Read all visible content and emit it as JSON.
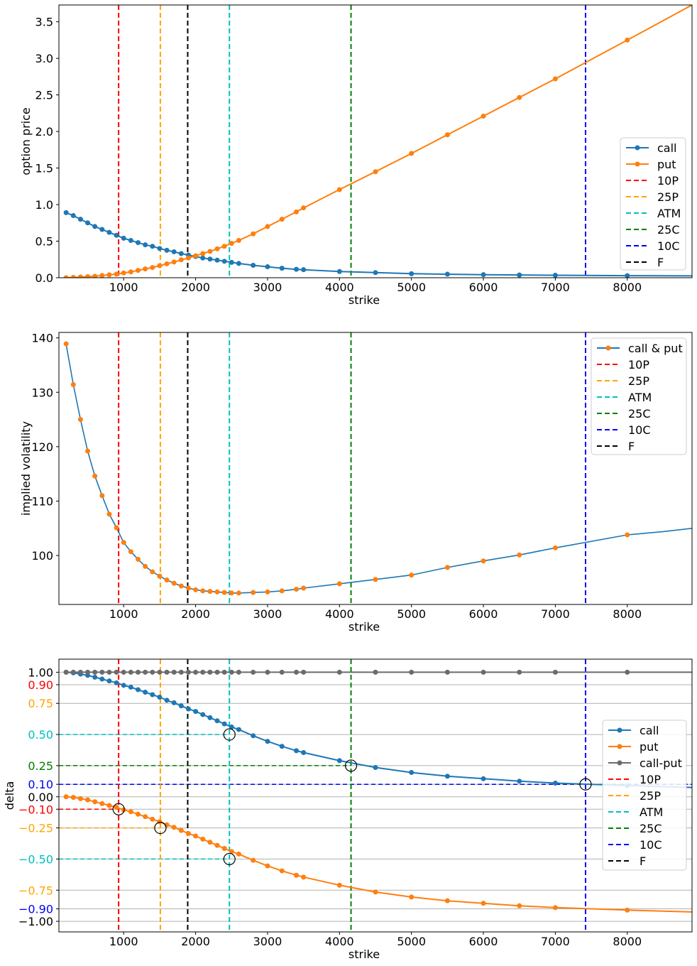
{
  "colors": {
    "call": "#1f77b4",
    "put": "#ff7f0e",
    "callput": "#6b6b6b",
    "10P": "#ff0000",
    "25P": "#ffa500",
    "ATM": "#00bfbf",
    "25C": "#008000",
    "10C": "#0000ff",
    "F": "#000000",
    "grid": "#b0b0b0"
  },
  "chart_data": [
    {
      "type": "line",
      "xlabel": "strike",
      "ylabel": "option price",
      "xlim": [
        100,
        8900
      ],
      "ylim": [
        0,
        3.73
      ],
      "xticks": [
        "1000",
        "2000",
        "3000",
        "4000",
        "5000",
        "6000",
        "7000",
        "8000"
      ],
      "yticks": [
        "0.0",
        "0.5",
        "1.0",
        "1.5",
        "2.0",
        "2.5",
        "3.0",
        "3.5"
      ],
      "legend_position": "lower-right",
      "strikes": [
        200,
        300,
        400,
        500,
        600,
        700,
        800,
        900,
        1000,
        1100,
        1200,
        1300,
        1400,
        1500,
        1600,
        1700,
        1800,
        1900,
        2000,
        2100,
        2200,
        2300,
        2400,
        2500,
        2600,
        2800,
        3000,
        3200,
        3400,
        3500,
        4000,
        4500,
        5000,
        5500,
        6000,
        6500,
        7000,
        8000
      ],
      "series": [
        {
          "name": "call",
          "color_key": "call",
          "values": [
            0.89,
            0.85,
            0.8,
            0.75,
            0.7,
            0.66,
            0.62,
            0.58,
            0.54,
            0.51,
            0.48,
            0.45,
            0.43,
            0.4,
            0.375,
            0.355,
            0.33,
            0.31,
            0.29,
            0.27,
            0.255,
            0.24,
            0.225,
            0.21,
            0.195,
            0.17,
            0.15,
            0.13,
            0.115,
            0.11,
            0.085,
            0.07,
            0.055,
            0.048,
            0.042,
            0.038,
            0.034,
            0.028
          ],
          "tail": [
            [
              8900,
              0.025
            ]
          ]
        },
        {
          "name": "put",
          "color_key": "put",
          "values": [
            0.0,
            0.005,
            0.01,
            0.015,
            0.02,
            0.03,
            0.04,
            0.05,
            0.065,
            0.08,
            0.1,
            0.12,
            0.14,
            0.165,
            0.19,
            0.215,
            0.245,
            0.27,
            0.3,
            0.33,
            0.36,
            0.395,
            0.43,
            0.47,
            0.51,
            0.6,
            0.7,
            0.8,
            0.9,
            0.955,
            1.205,
            1.45,
            1.7,
            1.955,
            2.21,
            2.465,
            2.72,
            3.25
          ],
          "tail": [
            [
              8900,
              3.73
            ]
          ]
        }
      ],
      "vlines": [
        {
          "name": "10P",
          "x": 930,
          "color_key": "10P"
        },
        {
          "name": "25P",
          "x": 1510,
          "color_key": "25P"
        },
        {
          "name": "ATM",
          "x": 2470,
          "color_key": "ATM"
        },
        {
          "name": "25C",
          "x": 4160,
          "color_key": "25C"
        },
        {
          "name": "10C",
          "x": 7420,
          "color_key": "10C"
        },
        {
          "name": "F",
          "x": 1890,
          "color_key": "F"
        }
      ]
    },
    {
      "type": "line",
      "xlabel": "strike",
      "ylabel": "implied volatility",
      "xlim": [
        100,
        8900
      ],
      "ylim": [
        91.0,
        141.0
      ],
      "xticks": [
        "1000",
        "2000",
        "3000",
        "4000",
        "5000",
        "6000",
        "7000",
        "8000"
      ],
      "yticks": [
        "100",
        "110",
        "120",
        "130",
        "140"
      ],
      "legend_position": "upper-right",
      "strikes": [
        200,
        300,
        400,
        500,
        600,
        700,
        800,
        900,
        1000,
        1100,
        1200,
        1300,
        1400,
        1500,
        1600,
        1700,
        1800,
        1900,
        2000,
        2100,
        2200,
        2300,
        2400,
        2500,
        2600,
        2800,
        3000,
        3200,
        3400,
        3500,
        4000,
        4500,
        5000,
        5500,
        6000,
        6500,
        7000,
        8000
      ],
      "series": [
        {
          "name": "call & put",
          "color_key": "call",
          "marker_color_key": "put",
          "values": [
            138.9,
            131.4,
            125.0,
            119.2,
            114.6,
            111.0,
            107.6,
            105.1,
            102.4,
            100.7,
            99.3,
            98.0,
            97.0,
            96.2,
            95.5,
            94.9,
            94.4,
            94.0,
            93.7,
            93.5,
            93.4,
            93.3,
            93.2,
            93.1,
            93.1,
            93.2,
            93.3,
            93.5,
            93.8,
            94.0,
            94.8,
            95.6,
            96.4,
            97.8,
            99.0,
            100.1,
            101.4,
            103.8
          ],
          "tail": [
            [
              8500,
              104.4
            ],
            [
              8900,
              105.0
            ]
          ]
        }
      ],
      "vlines": [
        {
          "name": "10P",
          "x": 930,
          "color_key": "10P"
        },
        {
          "name": "25P",
          "x": 1510,
          "color_key": "25P"
        },
        {
          "name": "ATM",
          "x": 2470,
          "color_key": "ATM"
        },
        {
          "name": "25C",
          "x": 4160,
          "color_key": "25C"
        },
        {
          "name": "10C",
          "x": 7420,
          "color_key": "10C"
        },
        {
          "name": "F",
          "x": 1890,
          "color_key": "F"
        }
      ]
    },
    {
      "type": "line",
      "xlabel": "strike",
      "ylabel": "delta",
      "xlim": [
        100,
        8900
      ],
      "ylim": [
        -1.085,
        1.105
      ],
      "xticks": [
        "1000",
        "2000",
        "3000",
        "4000",
        "5000",
        "6000",
        "7000",
        "8000"
      ],
      "yticks": [
        {
          "label": "1.00",
          "value": 1.0,
          "color_key": "F"
        },
        {
          "label": "0.90",
          "value": 0.9,
          "color_key": "10P"
        },
        {
          "label": "0.75",
          "value": 0.75,
          "color_key": "25P"
        },
        {
          "label": "0.50",
          "value": 0.5,
          "color_key": "ATM"
        },
        {
          "label": "0.25",
          "value": 0.25,
          "color_key": "25C"
        },
        {
          "label": "0.10",
          "value": 0.1,
          "color_key": "10C"
        },
        {
          "label": "0.00",
          "value": 0.0,
          "color_key": "F"
        },
        {
          "label": "−0.10",
          "value": -0.1,
          "color_key": "10P"
        },
        {
          "label": "−0.25",
          "value": -0.25,
          "color_key": "25P"
        },
        {
          "label": "−0.50",
          "value": -0.5,
          "color_key": "ATM"
        },
        {
          "label": "−0.75",
          "value": -0.75,
          "color_key": "25P"
        },
        {
          "label": "−0.90",
          "value": -0.9,
          "color_key": "10C"
        },
        {
          "label": "−1.00",
          "value": -1.0,
          "color_key": "F"
        }
      ],
      "grid": "horizontal",
      "legend_position": "center-right",
      "strikes": [
        200,
        300,
        400,
        500,
        600,
        700,
        800,
        900,
        1000,
        1100,
        1200,
        1300,
        1400,
        1500,
        1600,
        1700,
        1800,
        1900,
        2000,
        2100,
        2200,
        2300,
        2400,
        2500,
        2600,
        2800,
        3000,
        3200,
        3400,
        3500,
        4000,
        4500,
        5000,
        5500,
        6000,
        6500,
        7000,
        8000
      ],
      "series": [
        {
          "name": "call",
          "color_key": "call",
          "values": [
            1.0,
            0.995,
            0.985,
            0.975,
            0.96,
            0.945,
            0.93,
            0.915,
            0.895,
            0.88,
            0.86,
            0.84,
            0.82,
            0.8,
            0.775,
            0.755,
            0.73,
            0.705,
            0.685,
            0.66,
            0.635,
            0.61,
            0.585,
            0.56,
            0.54,
            0.49,
            0.445,
            0.405,
            0.37,
            0.355,
            0.29,
            0.235,
            0.195,
            0.165,
            0.145,
            0.125,
            0.11,
            0.09
          ],
          "tail": [
            [
              8900,
              0.075
            ]
          ]
        },
        {
          "name": "put",
          "color_key": "put",
          "values": [
            0.0,
            -0.005,
            -0.015,
            -0.025,
            -0.04,
            -0.055,
            -0.07,
            -0.085,
            -0.105,
            -0.12,
            -0.14,
            -0.16,
            -0.18,
            -0.2,
            -0.225,
            -0.245,
            -0.27,
            -0.295,
            -0.315,
            -0.34,
            -0.365,
            -0.39,
            -0.415,
            -0.44,
            -0.46,
            -0.51,
            -0.555,
            -0.595,
            -0.63,
            -0.645,
            -0.71,
            -0.765,
            -0.805,
            -0.835,
            -0.855,
            -0.875,
            -0.89,
            -0.91
          ],
          "tail": [
            [
              8900,
              -0.925
            ]
          ]
        },
        {
          "name": "call-put",
          "color_key": "callput",
          "values": [
            1,
            1,
            1,
            1,
            1,
            1,
            1,
            1,
            1,
            1,
            1,
            1,
            1,
            1,
            1,
            1,
            1,
            1,
            1,
            1,
            1,
            1,
            1,
            1,
            1,
            1,
            1,
            1,
            1,
            1,
            1,
            1,
            1,
            1,
            1,
            1,
            1,
            1
          ],
          "tail": [
            [
              8900,
              1.0
            ]
          ]
        }
      ],
      "hlines": [
        {
          "y": 0.5,
          "x_end": 2470,
          "color_key": "ATM"
        },
        {
          "y": 0.25,
          "x_end": 4160,
          "color_key": "25C"
        },
        {
          "y": 0.1,
          "x_end": 8900,
          "color_key": "10C"
        },
        {
          "y": -0.1,
          "x_end": 930,
          "color_key": "10P"
        },
        {
          "y": -0.25,
          "x_end": 1510,
          "color_key": "25P"
        },
        {
          "y": -0.5,
          "x_end": 2470,
          "color_key": "ATM"
        }
      ],
      "circles": [
        [
          2470,
          0.5
        ],
        [
          4160,
          0.25
        ],
        [
          7420,
          0.1
        ],
        [
          930,
          -0.1
        ],
        [
          1510,
          -0.25
        ],
        [
          2470,
          -0.5
        ]
      ],
      "vlines": [
        {
          "name": "10P",
          "x": 930,
          "color_key": "10P"
        },
        {
          "name": "25P",
          "x": 1510,
          "color_key": "25P"
        },
        {
          "name": "ATM",
          "x": 2470,
          "color_key": "ATM"
        },
        {
          "name": "25C",
          "x": 4160,
          "color_key": "25C"
        },
        {
          "name": "10C",
          "x": 7420,
          "color_key": "10C"
        },
        {
          "name": "F",
          "x": 1890,
          "color_key": "F"
        }
      ]
    }
  ]
}
